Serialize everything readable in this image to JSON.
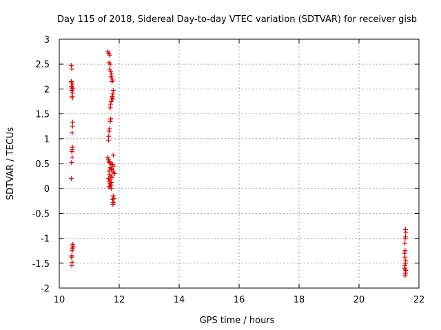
{
  "chart_data": {
    "type": "scatter",
    "title": "Day 115 of 2018, Sidereal Day-to-day VTEC variation (SDTVAR) for receiver gisb",
    "xlabel": "GPS time / hours",
    "ylabel": "SDTVAR / TECUs",
    "xlim": [
      10,
      22
    ],
    "ylim": [
      -2,
      3
    ],
    "xticks": [
      "10",
      "12",
      "14",
      "16",
      "18",
      "20",
      "22"
    ],
    "yticks": [
      "3",
      "2.5",
      "2",
      "1.5",
      "1",
      "0.5",
      "0",
      "-0.5",
      "-1",
      "-1.5",
      "-2"
    ],
    "grid": true,
    "marker": "+",
    "color": "#e00000",
    "series": [
      {
        "points": [
          [
            10.4,
            2.47
          ],
          [
            10.42,
            2.4
          ],
          [
            10.4,
            2.15
          ],
          [
            10.42,
            2.12
          ],
          [
            10.44,
            2.08
          ],
          [
            10.41,
            2.05
          ],
          [
            10.43,
            2.02
          ],
          [
            10.45,
            2.0
          ],
          [
            10.42,
            1.97
          ],
          [
            10.44,
            1.92
          ],
          [
            10.43,
            1.85
          ],
          [
            10.44,
            1.82
          ],
          [
            10.45,
            1.33
          ],
          [
            10.44,
            1.25
          ],
          [
            10.43,
            1.12
          ],
          [
            10.44,
            0.83
          ],
          [
            10.43,
            0.78
          ],
          [
            10.42,
            0.74
          ],
          [
            10.43,
            0.63
          ],
          [
            10.41,
            0.52
          ],
          [
            10.4,
            0.2
          ],
          [
            10.45,
            -1.12
          ],
          [
            10.46,
            -1.17
          ],
          [
            10.44,
            -1.2
          ],
          [
            10.43,
            -1.25
          ],
          [
            10.42,
            -1.35
          ],
          [
            10.41,
            -1.38
          ],
          [
            10.43,
            -1.48
          ],
          [
            10.42,
            -1.55
          ],
          [
            11.62,
            2.75
          ],
          [
            11.65,
            2.72
          ],
          [
            11.68,
            2.68
          ],
          [
            11.66,
            2.53
          ],
          [
            11.7,
            2.5
          ],
          [
            11.68,
            2.4
          ],
          [
            11.72,
            2.35
          ],
          [
            11.74,
            2.3
          ],
          [
            11.73,
            2.25
          ],
          [
            11.75,
            2.22
          ],
          [
            11.78,
            2.18
          ],
          [
            11.76,
            2.15
          ],
          [
            11.8,
            1.97
          ],
          [
            11.79,
            1.9
          ],
          [
            11.77,
            1.85
          ],
          [
            11.75,
            1.82
          ],
          [
            11.78,
            1.8
          ],
          [
            11.73,
            1.75
          ],
          [
            11.71,
            1.68
          ],
          [
            11.7,
            1.62
          ],
          [
            11.72,
            1.4
          ],
          [
            11.7,
            1.35
          ],
          [
            11.68,
            1.2
          ],
          [
            11.66,
            1.15
          ],
          [
            11.65,
            1.05
          ],
          [
            11.64,
            0.97
          ],
          [
            11.8,
            0.67
          ],
          [
            11.62,
            0.62
          ],
          [
            11.64,
            0.58
          ],
          [
            11.66,
            0.55
          ],
          [
            11.68,
            0.52
          ],
          [
            11.72,
            0.5
          ],
          [
            11.78,
            0.48
          ],
          [
            11.82,
            0.45
          ],
          [
            11.7,
            0.42
          ],
          [
            11.74,
            0.4
          ],
          [
            11.76,
            0.38
          ],
          [
            11.66,
            0.35
          ],
          [
            11.8,
            0.33
          ],
          [
            11.84,
            0.3
          ],
          [
            11.68,
            0.28
          ],
          [
            11.72,
            0.25
          ],
          [
            11.76,
            0.22
          ],
          [
            11.64,
            0.2
          ],
          [
            11.7,
            0.18
          ],
          [
            11.66,
            0.15
          ],
          [
            11.74,
            0.12
          ],
          [
            11.68,
            0.1
          ],
          [
            11.72,
            0.07
          ],
          [
            11.7,
            0.05
          ],
          [
            11.66,
            0.03
          ],
          [
            11.74,
            0.0
          ],
          [
            11.8,
            -0.15
          ],
          [
            11.82,
            -0.2
          ],
          [
            11.78,
            -0.22
          ],
          [
            11.8,
            -0.28
          ],
          [
            11.79,
            -0.32
          ],
          [
            21.55,
            -0.82
          ],
          [
            21.56,
            -0.88
          ],
          [
            21.55,
            -0.97
          ],
          [
            21.54,
            -1.0
          ],
          [
            21.53,
            -1.1
          ],
          [
            21.54,
            -1.25
          ],
          [
            21.52,
            -1.3
          ],
          [
            21.53,
            -1.38
          ],
          [
            21.56,
            -1.45
          ],
          [
            21.55,
            -1.5
          ],
          [
            21.53,
            -1.55
          ],
          [
            21.52,
            -1.6
          ],
          [
            21.54,
            -1.62
          ],
          [
            21.56,
            -1.65
          ],
          [
            21.55,
            -1.7
          ],
          [
            21.54,
            -1.75
          ]
        ]
      }
    ]
  }
}
